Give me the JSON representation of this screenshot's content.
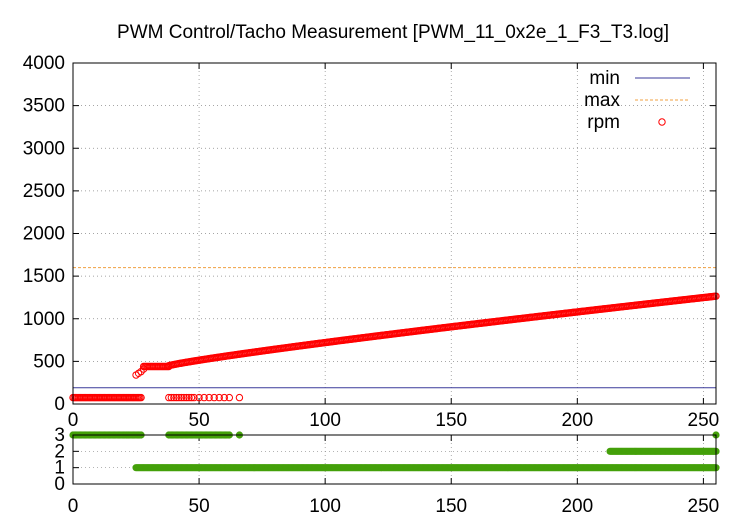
{
  "chart_data": [
    {
      "type": "scatter",
      "title": "PWM Control/Tacho Measurement [PWM_11_0x2e_1_F3_T3.log]",
      "xlabel": "",
      "ylabel": "",
      "xlim": [
        0,
        255
      ],
      "ylim": [
        0,
        4000
      ],
      "x_ticks": [
        0,
        50,
        100,
        150,
        200,
        250
      ],
      "y_ticks": [
        0,
        500,
        1000,
        1500,
        2000,
        2500,
        3000,
        3500,
        4000
      ],
      "grid": true,
      "legend_position": "top-right",
      "series": [
        {
          "name": "min",
          "style": "line",
          "color": "#3a3a9a",
          "values": [
            190,
            190
          ]
        },
        {
          "name": "max",
          "style": "dashed-line",
          "color": "#f0a040",
          "values": [
            1600,
            1600
          ]
        },
        {
          "name": "rpm",
          "style": "open-circles",
          "color": "#ff0000",
          "segments": [
            {
              "description_free_points": true,
              "x": [
                0,
                27
              ],
              "y": [
                75,
                75
              ]
            },
            {
              "x": [
                25,
                26,
                27,
                28
              ],
              "y": [
                340,
                360,
                380,
                410
              ]
            },
            {
              "x": [
                28,
                38
              ],
              "y": [
                440,
                440
              ]
            },
            {
              "x": [
                38,
                255
              ],
              "y": [
                450,
                1265
              ]
            },
            {
              "x": [
                38,
                66
              ],
              "y": [
                75,
                75
              ]
            }
          ],
          "sparse_low_points_x": [
            38,
            39,
            40,
            41,
            42,
            43,
            44,
            45,
            46,
            47,
            48,
            50,
            52,
            54,
            56,
            58,
            60,
            62,
            66
          ]
        }
      ]
    },
    {
      "type": "scatter",
      "title": "",
      "xlabel": "",
      "ylabel": "",
      "xlim": [
        0,
        255
      ],
      "ylim": [
        0,
        3
      ],
      "x_ticks": [
        0,
        50,
        100,
        150,
        200,
        250
      ],
      "y_ticks": [
        0,
        1,
        2,
        3
      ],
      "grid": true,
      "series": [
        {
          "name": "",
          "style": "filled-circles",
          "color": "#44a00a",
          "segments": [
            {
              "x": [
                0,
                27
              ],
              "y": [
                3,
                3
              ]
            },
            {
              "x": [
                38,
                62
              ],
              "y": [
                3,
                3
              ]
            },
            {
              "x": [
                66,
                66
              ],
              "y": [
                3,
                3
              ]
            },
            {
              "x": [
                255,
                255
              ],
              "y": [
                3,
                3
              ]
            },
            {
              "x": [
                25,
                255
              ],
              "y": [
                1,
                1
              ]
            },
            {
              "x": [
                213,
                255
              ],
              "y": [
                2,
                2
              ]
            }
          ]
        }
      ]
    }
  ]
}
